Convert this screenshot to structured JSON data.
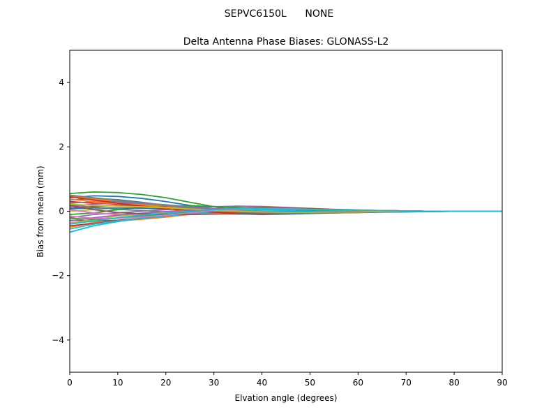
{
  "suptitle": "SEPVC6150L      NONE",
  "chart_data": {
    "type": "line",
    "title": "Delta Antenna Phase Biases: GLONASS-L2",
    "xlabel": "Elvation angle (degrees)",
    "ylabel": "Bias from mean (mm)",
    "xlim": [
      0,
      90
    ],
    "ylim": [
      -5,
      5
    ],
    "xticks": [
      0,
      10,
      20,
      30,
      40,
      50,
      60,
      70,
      80,
      90
    ],
    "yticks": [
      -4,
      -2,
      0,
      2,
      4
    ],
    "grid": false,
    "legend": "none",
    "x": [
      0,
      5,
      10,
      15,
      20,
      25,
      30,
      35,
      40,
      45,
      50,
      55,
      60,
      65,
      70,
      75,
      80,
      85,
      90
    ],
    "series": [
      {
        "color": "#1f77b4",
        "values": [
          0.42,
          0.48,
          0.46,
          0.4,
          0.3,
          0.18,
          0.06,
          -0.02,
          -0.06,
          -0.07,
          -0.06,
          -0.05,
          -0.04,
          -0.03,
          -0.02,
          -0.01,
          0.0,
          0.0,
          0.0
        ]
      },
      {
        "color": "#ff7f0e",
        "values": [
          -0.5,
          -0.35,
          -0.3,
          -0.25,
          -0.18,
          -0.1,
          -0.04,
          0.0,
          0.02,
          0.03,
          0.03,
          0.02,
          0.02,
          0.01,
          0.01,
          0.0,
          0.0,
          0.0,
          0.0
        ]
      },
      {
        "color": "#2ca02c",
        "values": [
          0.55,
          0.6,
          0.58,
          0.52,
          0.42,
          0.28,
          0.14,
          0.04,
          -0.02,
          -0.05,
          -0.05,
          -0.04,
          -0.03,
          -0.02,
          -0.01,
          -0.01,
          0.0,
          0.0,
          0.0
        ]
      },
      {
        "color": "#d62728",
        "values": [
          0.3,
          0.25,
          0.22,
          0.18,
          0.12,
          0.05,
          0.0,
          -0.03,
          -0.04,
          -0.04,
          -0.03,
          -0.03,
          -0.02,
          -0.01,
          -0.01,
          0.0,
          0.0,
          0.0,
          0.0
        ]
      },
      {
        "color": "#9467bd",
        "values": [
          -0.2,
          -0.1,
          -0.05,
          0.0,
          0.05,
          0.1,
          0.14,
          0.16,
          0.15,
          0.12,
          0.08,
          0.05,
          0.03,
          0.02,
          0.01,
          0.0,
          0.0,
          0.0,
          0.0
        ]
      },
      {
        "color": "#8c564b",
        "values": [
          0.1,
          0.15,
          0.18,
          0.18,
          0.15,
          0.1,
          0.05,
          0.01,
          -0.02,
          -0.03,
          -0.03,
          -0.02,
          -0.02,
          -0.01,
          0.0,
          0.0,
          0.0,
          0.0,
          0.0
        ]
      },
      {
        "color": "#e377c2",
        "values": [
          -0.35,
          -0.32,
          -0.28,
          -0.22,
          -0.15,
          -0.06,
          0.04,
          0.1,
          0.12,
          0.11,
          0.08,
          0.05,
          0.03,
          0.02,
          0.01,
          0.0,
          0.0,
          0.0,
          0.0
        ]
      },
      {
        "color": "#7f7f7f",
        "values": [
          0.2,
          0.12,
          0.06,
          0.02,
          -0.02,
          -0.06,
          -0.08,
          -0.09,
          -0.08,
          -0.06,
          -0.04,
          -0.03,
          -0.02,
          -0.01,
          -0.01,
          0.0,
          0.0,
          0.0,
          0.0
        ]
      },
      {
        "color": "#bcbd22",
        "values": [
          0.0,
          0.05,
          0.1,
          0.12,
          0.12,
          0.1,
          0.07,
          0.04,
          0.01,
          -0.01,
          -0.02,
          -0.02,
          -0.01,
          -0.01,
          0.0,
          0.0,
          0.0,
          0.0,
          0.0
        ]
      },
      {
        "color": "#17becf",
        "values": [
          -0.65,
          -0.45,
          -0.32,
          -0.22,
          -0.14,
          -0.08,
          -0.04,
          -0.02,
          -0.01,
          0.0,
          0.01,
          0.01,
          0.01,
          0.0,
          0.0,
          0.0,
          0.0,
          0.0,
          0.0
        ]
      },
      {
        "color": "#1f77b4",
        "values": [
          0.35,
          0.4,
          0.36,
          0.28,
          0.18,
          0.08,
          -0.02,
          -0.08,
          -0.1,
          -0.09,
          -0.07,
          -0.05,
          -0.04,
          -0.02,
          -0.01,
          -0.01,
          0.0,
          0.0,
          0.0
        ]
      },
      {
        "color": "#ff7f0e",
        "values": [
          0.48,
          0.38,
          0.3,
          0.22,
          0.14,
          0.06,
          0.0,
          -0.04,
          -0.06,
          -0.06,
          -0.05,
          -0.04,
          -0.03,
          -0.02,
          -0.01,
          0.0,
          0.0,
          0.0,
          0.0
        ]
      },
      {
        "color": "#2ca02c",
        "values": [
          -0.1,
          -0.05,
          0.05,
          0.12,
          0.16,
          0.17,
          0.15,
          0.12,
          0.08,
          0.05,
          0.03,
          0.02,
          0.01,
          0.01,
          0.0,
          0.0,
          0.0,
          0.0,
          0.0
        ]
      },
      {
        "color": "#d62728",
        "values": [
          -0.45,
          -0.38,
          -0.3,
          -0.22,
          -0.14,
          -0.06,
          0.02,
          0.08,
          0.1,
          0.09,
          0.07,
          0.05,
          0.03,
          0.02,
          0.01,
          0.0,
          0.0,
          0.0,
          0.0
        ]
      },
      {
        "color": "#9467bd",
        "values": [
          0.15,
          0.22,
          0.25,
          0.24,
          0.2,
          0.14,
          0.08,
          0.03,
          -0.01,
          -0.03,
          -0.03,
          -0.03,
          -0.02,
          -0.01,
          -0.01,
          0.0,
          0.0,
          0.0,
          0.0
        ]
      },
      {
        "color": "#8c564b",
        "values": [
          -0.28,
          -0.3,
          -0.28,
          -0.22,
          -0.14,
          -0.05,
          0.04,
          0.1,
          0.12,
          0.11,
          0.09,
          0.06,
          0.04,
          0.02,
          0.01,
          0.0,
          0.0,
          0.0,
          0.0
        ]
      },
      {
        "color": "#e377c2",
        "values": [
          0.05,
          -0.05,
          -0.1,
          -0.12,
          -0.12,
          -0.1,
          -0.08,
          -0.06,
          -0.04,
          -0.03,
          -0.02,
          -0.01,
          -0.01,
          0.0,
          0.0,
          0.0,
          0.0,
          0.0,
          0.0
        ]
      },
      {
        "color": "#7f7f7f",
        "values": [
          0.25,
          0.3,
          0.3,
          0.26,
          0.2,
          0.12,
          0.05,
          0.0,
          -0.03,
          -0.04,
          -0.04,
          -0.03,
          -0.02,
          -0.01,
          -0.01,
          0.0,
          0.0,
          0.0,
          0.0
        ]
      },
      {
        "color": "#bcbd22",
        "values": [
          -0.38,
          -0.25,
          -0.15,
          -0.08,
          -0.02,
          0.03,
          0.07,
          0.09,
          0.09,
          0.08,
          0.06,
          0.04,
          0.03,
          0.02,
          0.01,
          0.0,
          0.0,
          0.0,
          0.0
        ]
      },
      {
        "color": "#17becf",
        "values": [
          -0.55,
          -0.4,
          -0.3,
          -0.22,
          -0.15,
          -0.08,
          -0.02,
          0.02,
          0.04,
          0.05,
          0.04,
          0.03,
          0.02,
          0.01,
          0.01,
          0.0,
          0.0,
          0.0,
          0.0
        ]
      },
      {
        "color": "#1f77b4",
        "values": [
          0.08,
          0.1,
          0.1,
          0.09,
          0.07,
          0.04,
          0.01,
          -0.01,
          -0.02,
          -0.02,
          -0.02,
          -0.01,
          -0.01,
          0.0,
          0.0,
          0.0,
          0.0,
          0.0,
          0.0
        ]
      },
      {
        "color": "#ff7f0e",
        "values": [
          0.38,
          0.3,
          0.24,
          0.18,
          0.12,
          0.06,
          0.01,
          -0.02,
          -0.04,
          -0.04,
          -0.03,
          -0.02,
          -0.02,
          -0.01,
          0.0,
          0.0,
          0.0,
          0.0,
          0.0
        ]
      },
      {
        "color": "#2ca02c",
        "values": [
          -0.22,
          -0.25,
          -0.22,
          -0.16,
          -0.1,
          -0.03,
          0.04,
          0.08,
          0.1,
          0.09,
          0.07,
          0.05,
          0.03,
          0.02,
          0.01,
          0.0,
          0.0,
          0.0,
          0.0
        ]
      },
      {
        "color": "#d62728",
        "values": [
          0.45,
          0.35,
          0.25,
          0.16,
          0.08,
          0.02,
          -0.03,
          -0.06,
          -0.07,
          -0.06,
          -0.05,
          -0.03,
          -0.02,
          -0.01,
          -0.01,
          0.0,
          0.0,
          0.0,
          0.0
        ]
      },
      {
        "color": "#9467bd",
        "values": [
          -0.3,
          -0.2,
          -0.12,
          -0.06,
          -0.01,
          0.04,
          0.08,
          0.1,
          0.1,
          0.08,
          0.06,
          0.04,
          0.03,
          0.02,
          0.01,
          0.0,
          0.0,
          0.0,
          0.0
        ]
      },
      {
        "color": "#8c564b",
        "values": [
          0.18,
          0.05,
          -0.04,
          -0.08,
          -0.1,
          -0.1,
          -0.09,
          -0.07,
          -0.05,
          -0.04,
          -0.03,
          -0.02,
          -0.01,
          -0.01,
          0.0,
          0.0,
          0.0,
          0.0,
          0.0
        ]
      },
      {
        "color": "#e377c2",
        "values": [
          -0.15,
          -0.22,
          -0.22,
          -0.18,
          -0.12,
          -0.05,
          0.02,
          0.06,
          0.08,
          0.08,
          0.06,
          0.04,
          0.03,
          0.02,
          0.01,
          0.0,
          0.0,
          0.0,
          0.0
        ]
      },
      {
        "color": "#7f7f7f",
        "values": [
          0.5,
          0.42,
          0.34,
          0.26,
          0.18,
          0.1,
          0.03,
          -0.02,
          -0.05,
          -0.06,
          -0.05,
          -0.04,
          -0.03,
          -0.02,
          -0.01,
          0.0,
          0.0,
          0.0,
          0.0
        ]
      },
      {
        "color": "#bcbd22",
        "values": [
          0.22,
          0.18,
          0.16,
          0.14,
          0.11,
          0.07,
          0.03,
          0.0,
          -0.02,
          -0.03,
          -0.03,
          -0.02,
          -0.02,
          -0.01,
          0.0,
          0.0,
          0.0,
          0.0,
          0.0
        ]
      },
      {
        "color": "#17becf",
        "values": [
          -0.4,
          -0.3,
          -0.2,
          -0.12,
          -0.06,
          0.0,
          0.05,
          0.08,
          0.08,
          0.07,
          0.05,
          0.04,
          0.03,
          0.02,
          0.01,
          0.0,
          0.0,
          0.0,
          0.0
        ]
      }
    ]
  }
}
